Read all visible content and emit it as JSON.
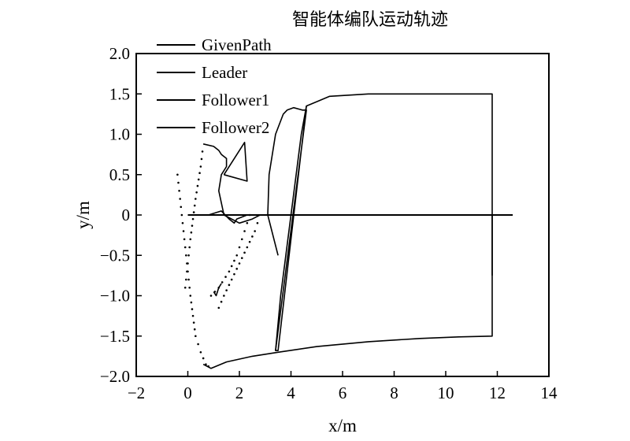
{
  "chart_data": {
    "type": "line",
    "title": "智能体编队运动轨迹",
    "xlabel": "x/m",
    "ylabel": "y/m",
    "xlim": [
      -2,
      14
    ],
    "ylim": [
      -2.0,
      2.0
    ],
    "x_ticks": [
      "−2",
      "0",
      "2",
      "4",
      "6",
      "8",
      "10",
      "12",
      "14"
    ],
    "y_ticks": [
      "2.0",
      "1.5",
      "1.0",
      "0.5",
      "0",
      "−0.5",
      "−1.0",
      "−1.5",
      "−2.0"
    ],
    "legend_position": "top-left",
    "grid": false,
    "series": [
      {
        "name": "GivenPath",
        "style": "solid",
        "x": [
          0.0,
          12.6
        ],
        "y": [
          0.0,
          0.0
        ]
      },
      {
        "name": "Leader",
        "style": "solid",
        "x": [
          0.0,
          0.8,
          1.3,
          1.6,
          1.8,
          1.9,
          2.3,
          2.8
        ],
        "y": [
          0.0,
          0.0,
          0.05,
          -0.05,
          -0.1,
          -0.05,
          0.0,
          0.0
        ]
      },
      {
        "name": "Follower1",
        "style": "solid",
        "x": [
          3.4,
          3.6,
          4.0,
          4.4,
          4.6,
          5.5,
          7.0,
          9.0,
          11.0,
          11.8,
          11.8,
          11.8
        ],
        "y": [
          -1.68,
          -1.0,
          0.0,
          1.0,
          1.35,
          1.47,
          1.5,
          1.5,
          1.5,
          1.5,
          0.0,
          -0.75
        ]
      },
      {
        "name": "Follower2",
        "style": "solid",
        "x": [
          0.6,
          0.9,
          1.5,
          2.5,
          3.5,
          5.0,
          7.0,
          9.0,
          10.5,
          11.8,
          11.8,
          11.8,
          12.0
        ],
        "y": [
          -1.85,
          -1.9,
          -1.82,
          -1.75,
          -1.7,
          -1.63,
          -1.57,
          -1.53,
          -1.51,
          -1.5,
          -0.5,
          0.0,
          0.0
        ]
      },
      {
        "name": "",
        "style": "solid",
        "x": [
          0.6,
          1.0,
          1.2,
          1.3,
          1.5,
          1.5,
          1.3,
          1.2,
          1.4,
          2.0,
          2.5,
          2.8
        ],
        "y": [
          0.88,
          0.85,
          0.8,
          0.75,
          0.7,
          0.6,
          0.5,
          0.3,
          0.0,
          -0.1,
          -0.05,
          0.0
        ]
      },
      {
        "name": "",
        "style": "solid",
        "x": [
          3.4,
          4.6,
          3.4,
          3.5,
          4.6
        ],
        "y": [
          -1.68,
          1.3,
          -1.68,
          -1.68,
          1.35
        ]
      },
      {
        "name": "",
        "style": "solid",
        "x": [
          3.5,
          3.1,
          3.15,
          3.4,
          3.7,
          3.85,
          4.1,
          4.45,
          4.6
        ],
        "y": [
          -0.5,
          0.0,
          0.5,
          1.0,
          1.25,
          1.3,
          1.33,
          1.3,
          1.3
        ]
      },
      {
        "name": "",
        "style": "dotted",
        "x": [
          -0.4,
          -0.3,
          -0.2,
          -0.1,
          0.0,
          0.1,
          0.2,
          0.3,
          0.5,
          0.7,
          0.9
        ],
        "y": [
          0.5,
          0.2,
          -0.1,
          -0.4,
          -0.7,
          -1.0,
          -1.25,
          -1.5,
          -1.7,
          -1.85,
          -1.9
        ]
      },
      {
        "name": "",
        "style": "dotted",
        "x": [
          -0.1,
          0.0,
          0.1,
          0.3,
          0.5,
          0.6
        ],
        "y": [
          -0.9,
          -0.6,
          -0.3,
          0.2,
          0.6,
          0.88
        ]
      },
      {
        "name": "",
        "style": "dotted",
        "x": [
          0.9,
          1.2,
          1.6,
          1.9,
          2.1,
          2.3,
          2.5
        ],
        "y": [
          -1.0,
          -0.9,
          -0.7,
          -0.5,
          -0.3,
          -0.1,
          0.1
        ]
      },
      {
        "name": "",
        "style": "dotted",
        "x": [
          1.2,
          1.4,
          1.7,
          2.0,
          2.3,
          2.6,
          2.8
        ],
        "y": [
          -1.15,
          -1.0,
          -0.8,
          -0.6,
          -0.4,
          -0.2,
          0.0
        ]
      },
      {
        "name": "",
        "style": "solid",
        "x": [
          1.0,
          1.1,
          1.2,
          1.3
        ],
        "y": [
          -0.95,
          -1.0,
          -0.9,
          -0.85
        ]
      },
      {
        "name": "",
        "style": "solid",
        "x": [
          1.4,
          2.2,
          2.3,
          1.4
        ],
        "y": [
          0.5,
          0.9,
          0.42,
          0.5
        ]
      }
    ]
  }
}
